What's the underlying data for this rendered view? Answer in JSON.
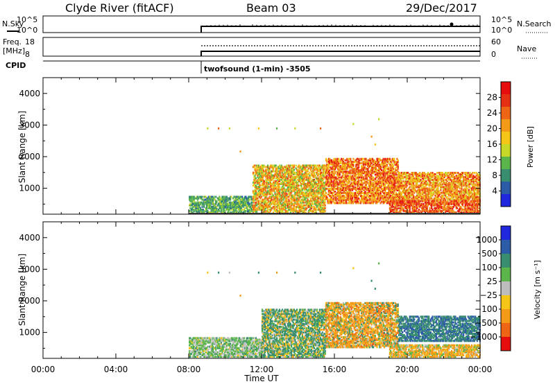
{
  "header": {
    "station": "Clyde River (fitACF)",
    "beam": "Beam 03",
    "date": "29/Dec/2017"
  },
  "top_panels": {
    "nsky": {
      "label": "N.Sky",
      "left_ticks": [
        "10^5",
        "10^0"
      ],
      "right_label": "N.Search",
      "right_ticks": [
        "10^5",
        "10^0"
      ]
    },
    "freq": {
      "label_line1": "Freq.",
      "label_line2": "[MHz]",
      "left_ticks": [
        "18",
        "8"
      ],
      "right_label": "Nave",
      "right_ticks": [
        "60",
        "0"
      ]
    },
    "cpid": {
      "label": "CPID",
      "program": "twofsound (1-min) -3505"
    }
  },
  "chart_data": [
    {
      "type": "heatmap",
      "name": "power",
      "xlabel": "",
      "ylabel": "Slant Range [km]",
      "x_ticks": [
        "00:00",
        "04:00",
        "08:00",
        "12:00",
        "16:00",
        "20:00",
        "00:00"
      ],
      "xlim_hours": [
        0,
        24
      ],
      "y_ticks": [
        1000,
        2000,
        3000,
        4000
      ],
      "ylim_km": [
        180,
        4500
      ],
      "colorbar_label": "Power [dB]",
      "colorbar_ticks": [
        4,
        8,
        12,
        16,
        20,
        24,
        28
      ],
      "colorbar_range": [
        0,
        32
      ],
      "colorscale": [
        "#1f28dd",
        "#2c5ba8",
        "#3a8e70",
        "#5bb54a",
        "#c8d829",
        "#f5c518",
        "#f39a18",
        "#ee6515",
        "#e63013",
        "#e60d0d"
      ],
      "data_start_hour": 8.0,
      "regions": [
        {
          "t": [
            8.0,
            11.5
          ],
          "r": [
            200,
            700
          ],
          "v": [
            6,
            14
          ]
        },
        {
          "t": [
            11.5,
            15.5
          ],
          "r": [
            200,
            1700
          ],
          "v": [
            10,
            26
          ]
        },
        {
          "t": [
            15.5,
            19.5
          ],
          "r": [
            500,
            1900
          ],
          "v": [
            16,
            30
          ]
        },
        {
          "t": [
            19.5,
            24.0
          ],
          "r": [
            600,
            1500
          ],
          "v": [
            14,
            28
          ]
        },
        {
          "t": [
            19.0,
            24.0
          ],
          "r": [
            200,
            600
          ],
          "v": [
            20,
            30
          ]
        }
      ]
    },
    {
      "type": "heatmap",
      "name": "velocity",
      "xlabel": "Time UT",
      "ylabel": "Slant Range [km]",
      "x_ticks": [
        "00:00",
        "04:00",
        "08:00",
        "12:00",
        "16:00",
        "20:00",
        "00:00"
      ],
      "xlim_hours": [
        0,
        24
      ],
      "y_ticks": [
        1000,
        2000,
        3000,
        4000
      ],
      "ylim_km": [
        180,
        4500
      ],
      "colorbar_label": "Velocity [m s⁻¹]",
      "colorbar_ticks": [
        "1000",
        "500",
        "100",
        "25",
        "−25",
        "−100",
        "−500",
        "−1000"
      ],
      "colorscale": [
        "#e60d0d",
        "#ee6515",
        "#f39a18",
        "#f5c518",
        "#bdbdbd",
        "#5bb54a",
        "#3a8e70",
        "#2c5ba8",
        "#1f28dd"
      ],
      "data_start_hour": 8.0,
      "regions": [
        {
          "t": [
            8.0,
            12.0
          ],
          "r": [
            200,
            800
          ],
          "v": [
            -40,
            120
          ]
        },
        {
          "t": [
            12.0,
            15.5
          ],
          "r": [
            200,
            1700
          ],
          "v": [
            -150,
            400
          ]
        },
        {
          "t": [
            15.5,
            19.5
          ],
          "r": [
            500,
            1900
          ],
          "v": [
            -600,
            200
          ]
        },
        {
          "t": [
            19.5,
            24.0
          ],
          "r": [
            700,
            1500
          ],
          "v": [
            100,
            800
          ]
        },
        {
          "t": [
            19.0,
            24.0
          ],
          "r": [
            200,
            600
          ],
          "v": [
            -300,
            100
          ]
        }
      ]
    }
  ]
}
